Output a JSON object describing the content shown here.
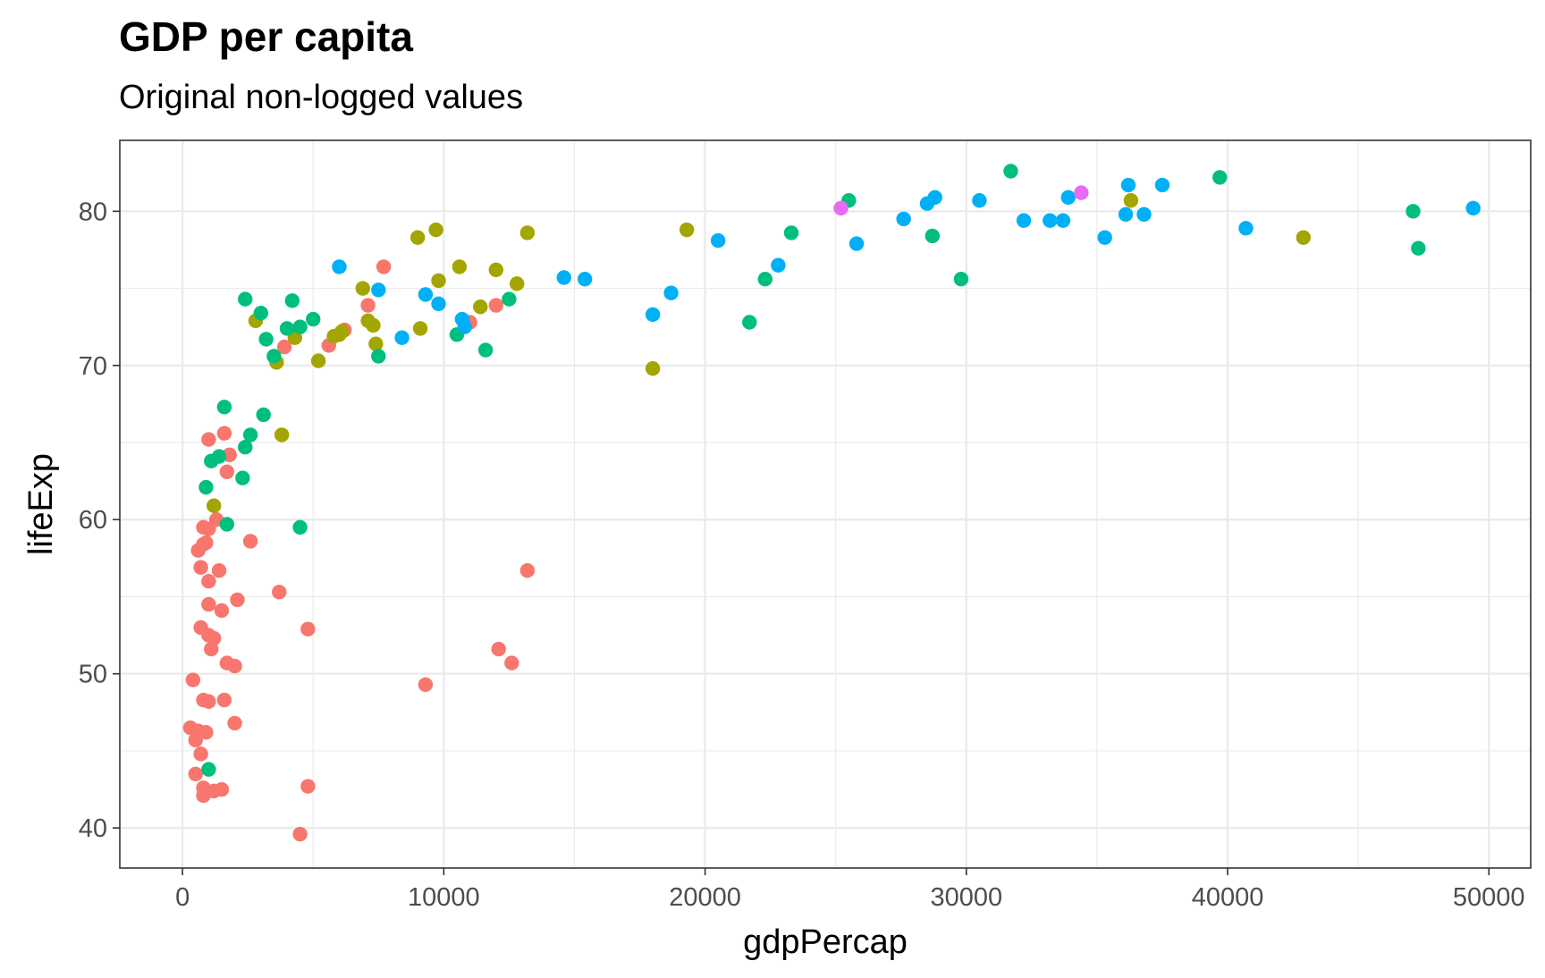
{
  "chart_data": {
    "type": "scatter",
    "title": "GDP per capita",
    "subtitle": "Original non-logged values",
    "xlabel": "gdpPercap",
    "ylabel": "lifeExp",
    "xlim": [
      -2400,
      51600
    ],
    "ylim": [
      37.4,
      84.6
    ],
    "x_ticks": [
      0,
      10000,
      20000,
      30000,
      40000,
      50000
    ],
    "y_ticks": [
      40,
      50,
      60,
      70,
      80
    ],
    "grid": true,
    "legend": "none",
    "colors": {
      "red": "#F8766D",
      "olive": "#A3A500",
      "green": "#00BF7D",
      "blue": "#00B0F6",
      "magenta": "#E76BF3"
    },
    "series": [
      {
        "color": "#F8766D",
        "points": [
          [
            300,
            46.5
          ],
          [
            500,
            45.7
          ],
          [
            600,
            46.3
          ],
          [
            400,
            49.6
          ],
          [
            500,
            43.5
          ],
          [
            700,
            44.8
          ],
          [
            800,
            48.3
          ],
          [
            900,
            46.2
          ],
          [
            800,
            42.6
          ],
          [
            800,
            42.1
          ],
          [
            1000,
            48.2
          ],
          [
            1200,
            42.4
          ],
          [
            1500,
            42.5
          ],
          [
            1600,
            48.3
          ],
          [
            4500,
            39.6
          ],
          [
            4800,
            42.7
          ],
          [
            700,
            53.0
          ],
          [
            1000,
            52.5
          ],
          [
            1100,
            51.6
          ],
          [
            1200,
            52.3
          ],
          [
            1000,
            54.5
          ],
          [
            1500,
            54.1
          ],
          [
            1700,
            50.7
          ],
          [
            2000,
            50.5
          ],
          [
            2000,
            46.8
          ],
          [
            2100,
            54.8
          ],
          [
            3700,
            55.3
          ],
          [
            4800,
            52.9
          ],
          [
            9300,
            49.3
          ],
          [
            12100,
            51.6
          ],
          [
            12600,
            50.7
          ],
          [
            13200,
            56.7
          ],
          [
            600,
            58.0
          ],
          [
            700,
            56.9
          ],
          [
            800,
            58.4
          ],
          [
            900,
            58.5
          ],
          [
            1000,
            59.4
          ],
          [
            800,
            59.5
          ],
          [
            1000,
            56.0
          ],
          [
            1400,
            56.7
          ],
          [
            1300,
            60.0
          ],
          [
            2600,
            58.6
          ],
          [
            1000,
            65.2
          ],
          [
            1600,
            65.6
          ],
          [
            1700,
            63.1
          ],
          [
            1800,
            64.2
          ],
          [
            3900,
            71.2
          ],
          [
            5600,
            71.3
          ],
          [
            6200,
            72.3
          ],
          [
            7100,
            73.9
          ],
          [
            7700,
            76.4
          ],
          [
            11000,
            72.8
          ],
          [
            12000,
            73.9
          ]
        ]
      },
      {
        "color": "#A3A500",
        "points": [
          [
            1200,
            60.9
          ],
          [
            2800,
            72.9
          ],
          [
            3600,
            70.2
          ],
          [
            3800,
            65.5
          ],
          [
            4300,
            71.8
          ],
          [
            5200,
            70.3
          ],
          [
            5800,
            71.9
          ],
          [
            6000,
            72.0
          ],
          [
            6100,
            72.2
          ],
          [
            6900,
            75.0
          ],
          [
            7100,
            72.9
          ],
          [
            7300,
            72.6
          ],
          [
            7400,
            71.4
          ],
          [
            9000,
            78.3
          ],
          [
            9100,
            72.4
          ],
          [
            9700,
            78.8
          ],
          [
            9800,
            75.5
          ],
          [
            10600,
            76.4
          ],
          [
            11400,
            73.8
          ],
          [
            12000,
            76.2
          ],
          [
            12800,
            75.3
          ],
          [
            13200,
            78.6
          ],
          [
            18000,
            69.8
          ],
          [
            19300,
            78.8
          ],
          [
            36300,
            80.7
          ],
          [
            42900,
            78.3
          ]
        ]
      },
      {
        "color": "#00BF7D",
        "points": [
          [
            1000,
            43.8
          ],
          [
            900,
            62.1
          ],
          [
            1100,
            63.8
          ],
          [
            1400,
            64.1
          ],
          [
            1600,
            67.3
          ],
          [
            1700,
            59.7
          ],
          [
            2300,
            62.7
          ],
          [
            2400,
            64.7
          ],
          [
            2600,
            65.5
          ],
          [
            3100,
            66.8
          ],
          [
            4500,
            59.5
          ],
          [
            2400,
            74.3
          ],
          [
            3000,
            73.4
          ],
          [
            3200,
            71.7
          ],
          [
            3500,
            70.6
          ],
          [
            4000,
            72.4
          ],
          [
            4200,
            74.2
          ],
          [
            4500,
            72.5
          ],
          [
            5000,
            73.0
          ],
          [
            7500,
            70.6
          ],
          [
            10500,
            72.0
          ],
          [
            11600,
            71.0
          ],
          [
            12500,
            74.3
          ],
          [
            21700,
            72.8
          ],
          [
            22300,
            75.6
          ],
          [
            23300,
            78.6
          ],
          [
            25500,
            80.7
          ],
          [
            28700,
            78.4
          ],
          [
            29800,
            75.6
          ],
          [
            31700,
            82.6
          ],
          [
            39700,
            82.2
          ],
          [
            47100,
            80.0
          ],
          [
            47300,
            77.6
          ]
        ]
      },
      {
        "color": "#00B0F6",
        "points": [
          [
            6000,
            76.4
          ],
          [
            7500,
            74.9
          ],
          [
            8400,
            71.8
          ],
          [
            9300,
            74.6
          ],
          [
            9800,
            74.0
          ],
          [
            10700,
            73.0
          ],
          [
            10800,
            72.5
          ],
          [
            14600,
            75.7
          ],
          [
            15400,
            75.6
          ],
          [
            18000,
            73.3
          ],
          [
            18700,
            74.7
          ],
          [
            20500,
            78.1
          ],
          [
            22800,
            76.5
          ],
          [
            25800,
            77.9
          ],
          [
            27600,
            79.5
          ],
          [
            28500,
            80.5
          ],
          [
            28800,
            80.9
          ],
          [
            30500,
            80.7
          ],
          [
            32200,
            79.4
          ],
          [
            33200,
            79.4
          ],
          [
            33700,
            79.4
          ],
          [
            33900,
            80.9
          ],
          [
            35300,
            78.3
          ],
          [
            36100,
            79.8
          ],
          [
            36200,
            81.7
          ],
          [
            36800,
            79.8
          ],
          [
            37500,
            81.7
          ],
          [
            40700,
            78.9
          ],
          [
            49400,
            80.2
          ]
        ]
      },
      {
        "color": "#E76BF3",
        "points": [
          [
            25200,
            80.2
          ],
          [
            34400,
            81.2
          ]
        ]
      }
    ]
  }
}
